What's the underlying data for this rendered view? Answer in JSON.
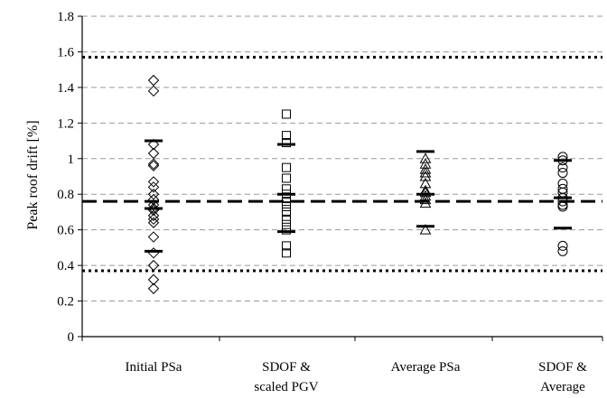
{
  "chart_data": {
    "type": "scatter",
    "title": "",
    "xlabel": "",
    "ylabel": "Peak roof drift [%]",
    "ylim": [
      0,
      1.8
    ],
    "y_ticks": [
      "0",
      "0.2",
      "0.4",
      "0.6",
      "0.8",
      "1",
      "1.2",
      "1.4",
      "1.6",
      "1.8"
    ],
    "grid": "horizontal dashed",
    "categories": [
      {
        "line1": "Initial PSa",
        "line2": ""
      },
      {
        "line1": "SDOF &",
        "line2": "scaled PGV"
      },
      {
        "line1": "Average PSa",
        "line2": ""
      },
      {
        "line1": "SDOF   &",
        "line2": "Average"
      }
    ],
    "series": [
      {
        "marker": "diamond",
        "values": [
          1.44,
          1.38,
          1.08,
          1.03,
          0.97,
          0.96,
          0.87,
          0.84,
          0.8,
          0.77,
          0.74,
          0.72,
          0.71,
          0.68,
          0.66,
          0.64,
          0.56,
          0.47,
          0.4,
          0.32,
          0.27
        ],
        "mean": 0.72,
        "plus_sigma": 1.1,
        "minus_sigma": 0.48
      },
      {
        "marker": "square",
        "values": [
          1.25,
          1.13,
          1.09,
          0.95,
          0.89,
          0.83,
          0.8,
          0.78,
          0.76,
          0.73,
          0.7,
          0.66,
          0.63,
          0.6,
          0.51,
          0.47
        ],
        "mean": 0.8,
        "plus_sigma": 1.08,
        "minus_sigma": 0.59
      },
      {
        "marker": "triangle",
        "values": [
          1.0,
          0.97,
          0.94,
          0.92,
          0.9,
          0.86,
          0.82,
          0.81,
          0.79,
          0.77,
          0.75,
          0.6
        ],
        "mean": 0.8,
        "plus_sigma": 1.04,
        "minus_sigma": 0.62
      },
      {
        "marker": "circle",
        "values": [
          1.01,
          0.99,
          0.95,
          0.92,
          0.86,
          0.83,
          0.81,
          0.78,
          0.76,
          0.74,
          0.73,
          0.51,
          0.48
        ],
        "mean": 0.78,
        "plus_sigma": 0.99,
        "minus_sigma": 0.61
      }
    ],
    "reference_lines": [
      {
        "style": "dotted",
        "value": 1.57
      },
      {
        "style": "dashed",
        "value": 0.76
      },
      {
        "style": "dotted",
        "value": 0.37
      }
    ]
  }
}
